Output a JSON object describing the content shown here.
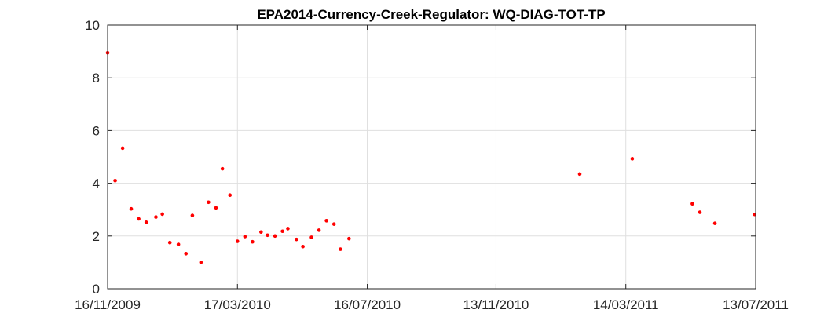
{
  "chart_data": {
    "type": "scatter",
    "title": "EPA2014-Currency-Creek-Regulator: WQ-DIAG-TOT-TP",
    "xlabel": "",
    "ylabel": "",
    "x_scale": "date",
    "xlim": [
      "2009-11-16",
      "2011-07-13"
    ],
    "ylim": [
      0,
      10
    ],
    "x_ticks": [
      "16/11/2009",
      "17/03/2010",
      "16/07/2010",
      "13/11/2010",
      "14/03/2011",
      "13/07/2011"
    ],
    "y_ticks": [
      "0",
      "2",
      "4",
      "6",
      "8",
      "10"
    ],
    "grid": true,
    "marker_color": "#ff0000",
    "series": [
      {
        "points": [
          {
            "x": "2009-11-16",
            "y": 8.95
          },
          {
            "x": "2009-11-23",
            "y": 4.1
          },
          {
            "x": "2009-11-30",
            "y": 5.33
          },
          {
            "x": "2009-12-08",
            "y": 3.03
          },
          {
            "x": "2009-12-15",
            "y": 2.65
          },
          {
            "x": "2009-12-22",
            "y": 2.52
          },
          {
            "x": "2009-12-31",
            "y": 2.72
          },
          {
            "x": "2010-01-06",
            "y": 2.83
          },
          {
            "x": "2010-01-13",
            "y": 1.75
          },
          {
            "x": "2010-01-21",
            "y": 1.68
          },
          {
            "x": "2010-01-28",
            "y": 1.33
          },
          {
            "x": "2010-02-03",
            "y": 2.78
          },
          {
            "x": "2010-02-11",
            "y": 1.0
          },
          {
            "x": "2010-02-18",
            "y": 3.28
          },
          {
            "x": "2010-02-25",
            "y": 3.07
          },
          {
            "x": "2010-03-03",
            "y": 4.55
          },
          {
            "x": "2010-03-10",
            "y": 3.55
          },
          {
            "x": "2010-03-17",
            "y": 1.8
          },
          {
            "x": "2010-03-24",
            "y": 1.98
          },
          {
            "x": "2010-03-31",
            "y": 1.78
          },
          {
            "x": "2010-04-08",
            "y": 2.15
          },
          {
            "x": "2010-04-14",
            "y": 2.03
          },
          {
            "x": "2010-04-21",
            "y": 2.0
          },
          {
            "x": "2010-04-28",
            "y": 2.18
          },
          {
            "x": "2010-05-03",
            "y": 2.28
          },
          {
            "x": "2010-05-11",
            "y": 1.87
          },
          {
            "x": "2010-05-17",
            "y": 1.6
          },
          {
            "x": "2010-05-25",
            "y": 1.95
          },
          {
            "x": "2010-06-01",
            "y": 2.22
          },
          {
            "x": "2010-06-08",
            "y": 2.58
          },
          {
            "x": "2010-06-15",
            "y": 2.45
          },
          {
            "x": "2010-06-21",
            "y": 1.5
          },
          {
            "x": "2010-06-29",
            "y": 1.9
          },
          {
            "x": "2011-01-30",
            "y": 4.35
          },
          {
            "x": "2011-03-20",
            "y": 4.93
          },
          {
            "x": "2011-05-15",
            "y": 3.22
          },
          {
            "x": "2011-05-22",
            "y": 2.9
          },
          {
            "x": "2011-06-05",
            "y": 2.48
          },
          {
            "x": "2011-07-12",
            "y": 2.82
          }
        ]
      }
    ]
  }
}
